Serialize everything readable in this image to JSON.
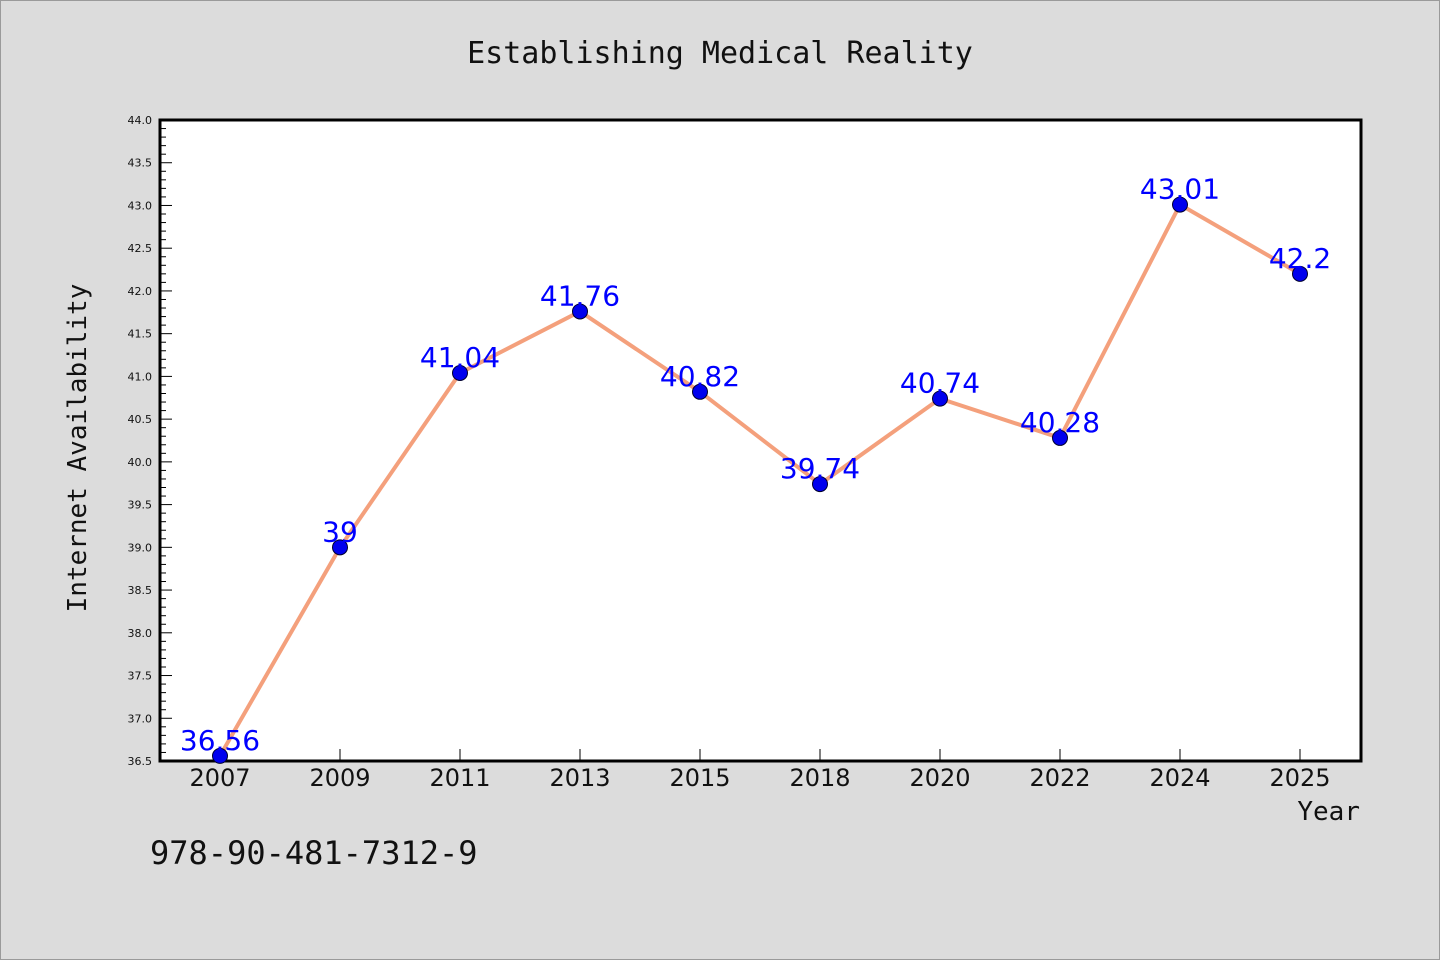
{
  "chart_data": {
    "type": "line",
    "title": "Establishing Medical Reality",
    "xlabel": "Year",
    "ylabel": "Internet Availability",
    "categories": [
      "2007",
      "2009",
      "2011",
      "2013",
      "2015",
      "2018",
      "2020",
      "2022",
      "2024",
      "2025"
    ],
    "series": [
      {
        "values": [
          36.56,
          39,
          41.04,
          41.76,
          40.82,
          39.74,
          40.74,
          40.28,
          43.01,
          42.2
        ],
        "line_color": "#f4a07c",
        "marker_color": "#0000ee",
        "label_color": "#0000ff"
      }
    ],
    "data_labels": [
      "36.56",
      "39",
      "41.04",
      "41.76",
      "40.82",
      "39.74",
      "40.74",
      "40.28",
      "43.01",
      "42.2"
    ],
    "ylim": [
      36.5,
      44.0
    ],
    "yticks": [
      "36.5",
      "37.0",
      "37.5",
      "38.0",
      "38.5",
      "39.0",
      "39.5",
      "40.0",
      "40.5",
      "41.0",
      "41.5",
      "42.0",
      "42.5",
      "43.0",
      "43.5",
      "44.0"
    ],
    "grid": false,
    "legend": "none"
  },
  "annotation": "978-90-481-7312-9",
  "colors": {
    "background": "#dcdcdc",
    "plot_area": "#ffffff",
    "axis": "#000000"
  }
}
